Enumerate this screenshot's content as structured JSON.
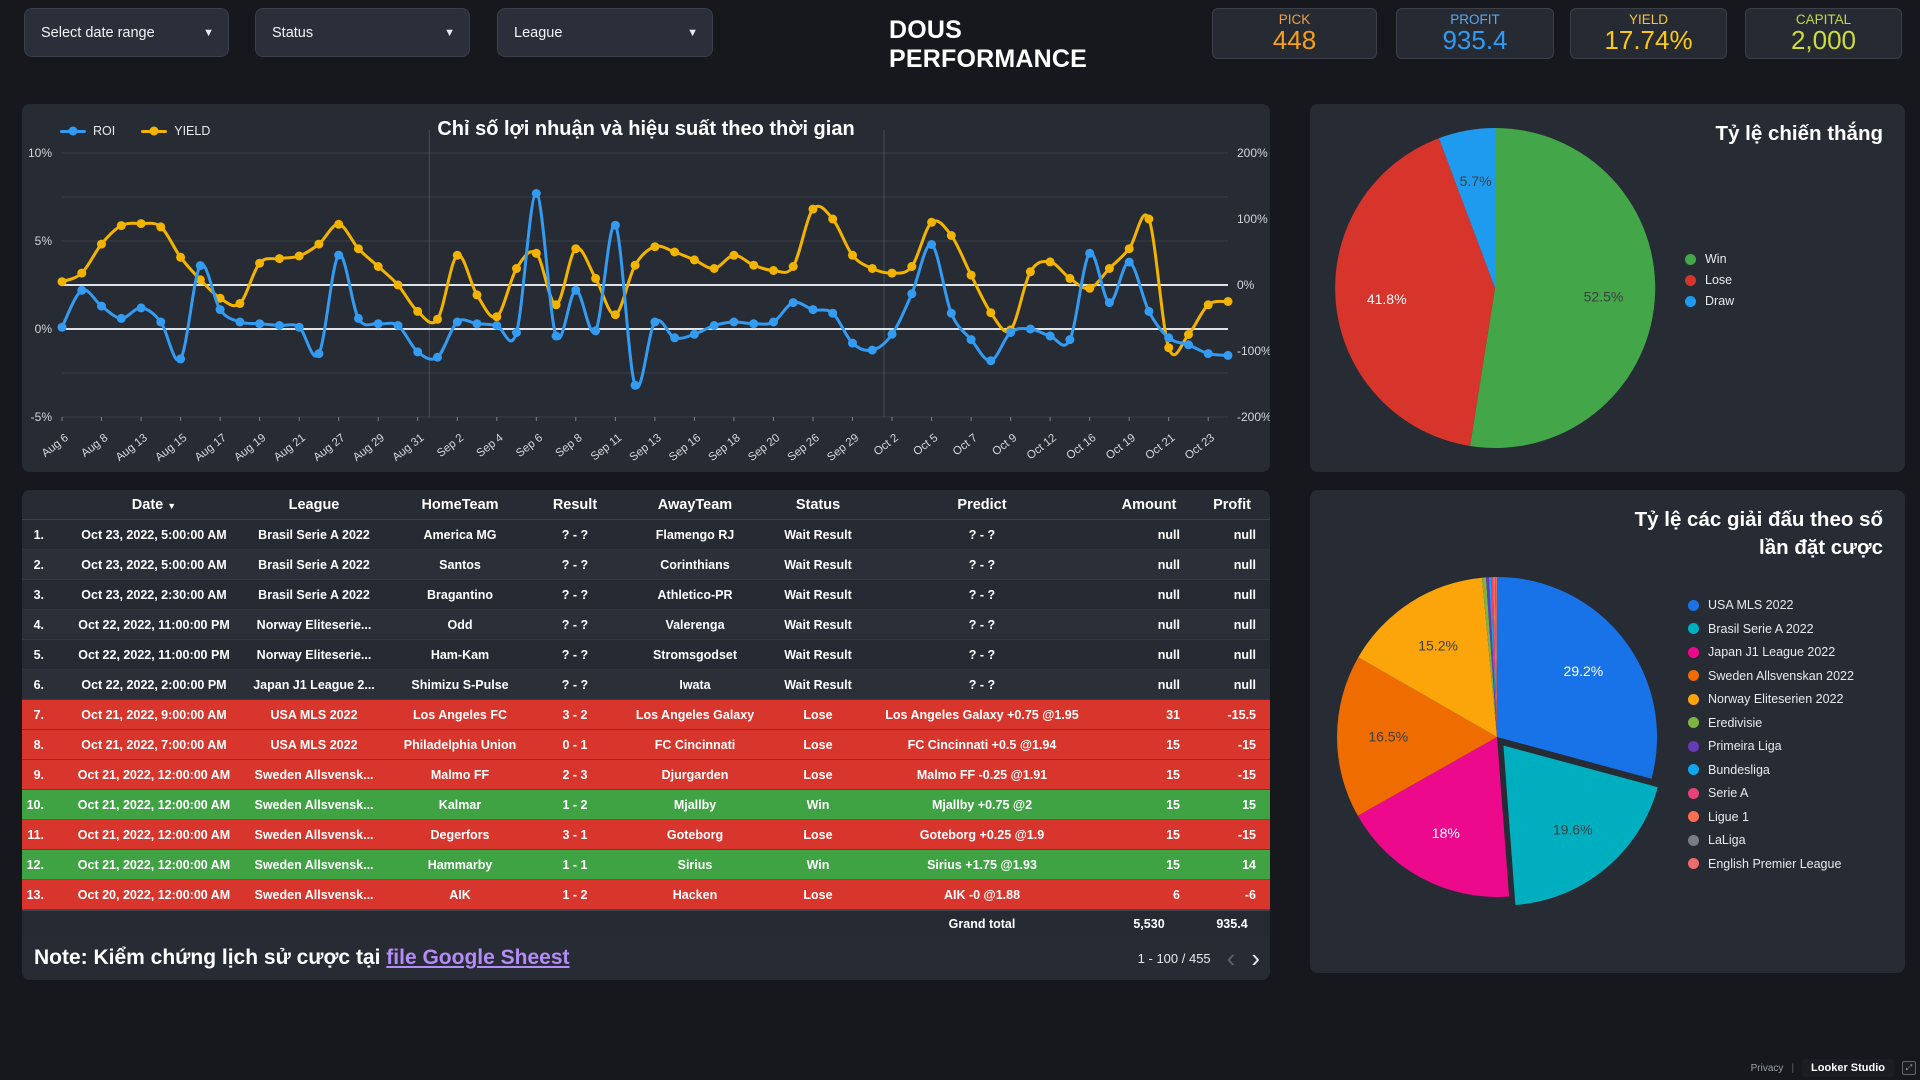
{
  "header": {
    "filters": [
      {
        "label": "Select date range"
      },
      {
        "label": "Status"
      },
      {
        "label": "League"
      }
    ],
    "title": "DOUS PERFORMANCE",
    "kpis": [
      {
        "label": "PICK",
        "value": "448",
        "label_color": "#ED9F44",
        "value_color": "#F99E1B"
      },
      {
        "label": "PROFIT",
        "value": "935.4",
        "label_color": "#5BA7EF",
        "value_color": "#2F9BF4"
      },
      {
        "label": "YIELD",
        "value": "17.74%",
        "label_color": "#F2C53D",
        "value_color": "#FBC711"
      },
      {
        "label": "CAPITAL",
        "value": "2,000",
        "label_color": "#C5D449",
        "value_color": "#CDDC39"
      }
    ]
  },
  "line_chart": {
    "title": "Chỉ số lợi nhuận và hiệu suất theo thời gian",
    "left_axis_ticks": [
      "10%",
      "5%",
      "0%",
      "-5%"
    ],
    "right_axis_ticks": [
      "200%",
      "100%",
      "0%",
      "-100%",
      "-200%"
    ]
  },
  "chart_data": [
    {
      "type": "line",
      "title": "Chỉ số lợi nhuận và hiệu suất theo thời gian",
      "x_labels": [
        "Aug 6",
        "Aug 8",
        "Aug 13",
        "Aug 15",
        "Aug 17",
        "Aug 19",
        "Aug 21",
        "Aug 27",
        "Aug 29",
        "Aug 31",
        "Sep 2",
        "Sep 4",
        "Sep 6",
        "Sep 8",
        "Sep 11",
        "Sep 13",
        "Sep 16",
        "Sep 18",
        "Sep 20",
        "Sep 26",
        "Sep 29",
        "Oct 2",
        "Oct 5",
        "Oct 7",
        "Oct 9",
        "Oct 12",
        "Oct 16",
        "Oct 19",
        "Oct 21",
        "Oct 23"
      ],
      "left_axis_range": [
        -5,
        10
      ],
      "right_axis_range": [
        -200,
        200
      ],
      "series": [
        {
          "name": "YIELD",
          "axis": "right",
          "color": "#F2B400",
          "values": [
            5,
            18,
            62,
            90,
            93,
            88,
            42,
            8,
            -20,
            -28,
            33,
            40,
            44,
            62,
            92,
            55,
            28,
            0,
            -40,
            -52,
            45,
            -15,
            -48,
            25,
            48,
            -30,
            55,
            10,
            -45,
            30,
            58,
            50,
            38,
            25,
            45,
            30,
            22,
            28,
            115,
            100,
            45,
            25,
            18,
            28,
            95,
            75,
            15,
            -42,
            -68,
            20,
            35,
            10,
            -5,
            25,
            55,
            100,
            -95,
            -75,
            -30,
            -25
          ]
        },
        {
          "name": "ROI",
          "axis": "left",
          "color": "#339CF2",
          "values": [
            0.1,
            2.2,
            1.3,
            0.6,
            1.2,
            0.4,
            -1.7,
            3.6,
            1.1,
            0.4,
            0.3,
            0.2,
            0.1,
            -1.4,
            4.2,
            0.6,
            0.3,
            0.2,
            -1.3,
            -1.6,
            0.4,
            0.3,
            0.2,
            -0.2,
            7.7,
            -0.4,
            2.2,
            -0.1,
            5.9,
            -3.2,
            0.4,
            -0.5,
            -0.3,
            0.2,
            0.4,
            0.3,
            0.4,
            1.5,
            1.1,
            0.9,
            -0.8,
            -1.2,
            -0.3,
            2.0,
            4.8,
            0.9,
            -0.6,
            -1.8,
            -0.2,
            0.0,
            -0.4,
            -0.6,
            4.3,
            1.5,
            3.8,
            1.0,
            -0.5,
            -0.9,
            -1.4,
            -1.5
          ]
        }
      ]
    },
    {
      "type": "pie",
      "title": "Tỷ lệ chiến thắng",
      "slices": [
        {
          "label": "Win",
          "value": 52.5,
          "color": "#43A648",
          "pct_label": "52.5%",
          "pct_color": "#3c4043"
        },
        {
          "label": "Lose",
          "value": 41.8,
          "color": "#D7342B",
          "pct_label": "41.8%",
          "pct_color": "#ffffff"
        },
        {
          "label": "Draw",
          "value": 5.7,
          "color": "#1E9BEF",
          "pct_label": "5.7%",
          "pct_color": "#3c4043"
        }
      ]
    },
    {
      "type": "pie",
      "title": "Tỷ lệ các giải đấu theo số lần đặt cược",
      "title_lines": [
        "Tỷ lệ các giải đấu theo số",
        "lần đặt cược"
      ],
      "slices": [
        {
          "label": "USA MLS 2022",
          "value": 29.2,
          "color": "#1973E8",
          "pct_label": "29.2%",
          "pct_color": "#ffffff"
        },
        {
          "label": "Brasil Serie A 2022",
          "value": 19.6,
          "color": "#00AFBF",
          "pct_label": "19.6%",
          "pct_color": "#3c4043",
          "explode": true
        },
        {
          "label": "Japan J1 League 2022",
          "value": 18,
          "color": "#EC098C",
          "pct_label": "18%",
          "pct_color": "#ffffff"
        },
        {
          "label": "Sweden Allsvenskan 2022",
          "value": 16.5,
          "color": "#EF6C00",
          "pct_label": "16.5%",
          "pct_color": "#3c4043"
        },
        {
          "label": "Norway Eliteserien 2022",
          "value": 15.2,
          "color": "#FBA50A",
          "pct_label": "15.2%",
          "pct_color": "#3c4043"
        },
        {
          "label": "Eredivisie",
          "value": 0.4,
          "color": "#7CB342"
        },
        {
          "label": "Primeira Liga",
          "value": 0.3,
          "color": "#673AB7"
        },
        {
          "label": "Bundesliga",
          "value": 0.2,
          "color": "#0FA8F0"
        },
        {
          "label": "Serie A",
          "value": 0.2,
          "color": "#E84178"
        },
        {
          "label": "Ligue 1",
          "value": 0.2,
          "color": "#FB6E51"
        },
        {
          "label": "LaLiga",
          "value": 0.1,
          "color": "#797D82"
        },
        {
          "label": "English Premier League",
          "value": 0.1,
          "color": "#ED6B68"
        }
      ]
    }
  ],
  "table": {
    "headers": [
      "Date",
      "League",
      "HomeTeam",
      "Result",
      "AwayTeam",
      "Status",
      "Predict",
      "Amount",
      "Profit"
    ],
    "sort_column": "Date",
    "rows": [
      {
        "idx": "1.",
        "date": "Oct 23, 2022, 5:00:00 AM",
        "league": "Brasil Serie A 2022",
        "home": "America MG",
        "result": "? - ?",
        "away": "Flamengo RJ",
        "status": "Wait Result",
        "predict": "? - ?",
        "amount": "null",
        "profit": "null",
        "highlight": "none"
      },
      {
        "idx": "2.",
        "date": "Oct 23, 2022, 5:00:00 AM",
        "league": "Brasil Serie A 2022",
        "home": "Santos",
        "result": "? - ?",
        "away": "Corinthians",
        "status": "Wait Result",
        "predict": "? - ?",
        "amount": "null",
        "profit": "null",
        "highlight": "none"
      },
      {
        "idx": "3.",
        "date": "Oct 23, 2022, 2:30:00 AM",
        "league": "Brasil Serie A 2022",
        "home": "Bragantino",
        "result": "? - ?",
        "away": "Athletico-PR",
        "status": "Wait Result",
        "predict": "? - ?",
        "amount": "null",
        "profit": "null",
        "highlight": "none"
      },
      {
        "idx": "4.",
        "date": "Oct 22, 2022, 11:00:00 PM",
        "league": "Norway Eliteserie...",
        "home": "Odd",
        "result": "? - ?",
        "away": "Valerenga",
        "status": "Wait Result",
        "predict": "? - ?",
        "amount": "null",
        "profit": "null",
        "highlight": "none"
      },
      {
        "idx": "5.",
        "date": "Oct 22, 2022, 11:00:00 PM",
        "league": "Norway Eliteserie...",
        "home": "Ham-Kam",
        "result": "? - ?",
        "away": "Stromsgodset",
        "status": "Wait Result",
        "predict": "? - ?",
        "amount": "null",
        "profit": "null",
        "highlight": "none"
      },
      {
        "idx": "6.",
        "date": "Oct 22, 2022, 2:00:00 PM",
        "league": "Japan J1 League 2...",
        "home": "Shimizu S-Pulse",
        "result": "? - ?",
        "away": "Iwata",
        "status": "Wait Result",
        "predict": "? - ?",
        "amount": "null",
        "profit": "null",
        "highlight": "none"
      },
      {
        "idx": "7.",
        "date": "Oct 21, 2022, 9:00:00 AM",
        "league": "USA MLS 2022",
        "home": "Los Angeles FC",
        "result": "3 - 2",
        "away": "Los Angeles Galaxy",
        "status": "Lose",
        "predict": "Los Angeles Galaxy +0.75 @1.95",
        "amount": "31",
        "profit": "-15.5",
        "highlight": "red"
      },
      {
        "idx": "8.",
        "date": "Oct 21, 2022, 7:00:00 AM",
        "league": "USA MLS 2022",
        "home": "Philadelphia Union",
        "result": "0 - 1",
        "away": "FC Cincinnati",
        "status": "Lose",
        "predict": "FC Cincinnati +0.5 @1.94",
        "amount": "15",
        "profit": "-15",
        "highlight": "red"
      },
      {
        "idx": "9.",
        "date": "Oct 21, 2022, 12:00:00 AM",
        "league": "Sweden Allsvensk...",
        "home": "Malmo FF",
        "result": "2 - 3",
        "away": "Djurgarden",
        "status": "Lose",
        "predict": "Malmo FF -0.25 @1.91",
        "amount": "15",
        "profit": "-15",
        "highlight": "red"
      },
      {
        "idx": "10.",
        "date": "Oct 21, 2022, 12:00:00 AM",
        "league": "Sweden Allsvensk...",
        "home": "Kalmar",
        "result": "1 - 2",
        "away": "Mjallby",
        "status": "Win",
        "predict": "Mjallby +0.75 @2",
        "amount": "15",
        "profit": "15",
        "highlight": "green"
      },
      {
        "idx": "11.",
        "date": "Oct 21, 2022, 12:00:00 AM",
        "league": "Sweden Allsvensk...",
        "home": "Degerfors",
        "result": "3 - 1",
        "away": "Goteborg",
        "status": "Lose",
        "predict": "Goteborg +0.25 @1.9",
        "amount": "15",
        "profit": "-15",
        "highlight": "red"
      },
      {
        "idx": "12.",
        "date": "Oct 21, 2022, 12:00:00 AM",
        "league": "Sweden Allsvensk...",
        "home": "Hammarby",
        "result": "1 - 1",
        "away": "Sirius",
        "status": "Win",
        "predict": "Sirius +1.75 @1.93",
        "amount": "15",
        "profit": "14",
        "highlight": "green"
      },
      {
        "idx": "13.",
        "date": "Oct 20, 2022, 12:00:00 AM",
        "league": "Sweden Allsvensk...",
        "home": "AIK",
        "result": "1 - 2",
        "away": "Hacken",
        "status": "Lose",
        "predict": "AIK -0 @1.88",
        "amount": "6",
        "profit": "-6",
        "highlight": "red"
      }
    ],
    "grand_total": {
      "label": "Grand total",
      "amount": "5,530",
      "profit": "935.4"
    },
    "pagination": {
      "range": "1 - 100 / 455"
    }
  },
  "note": {
    "prefix": "Note: Kiểm chứng lịch sử cược tại ",
    "link_text": "file Google Sheest"
  },
  "page_footer": {
    "privacy": "Privacy",
    "brand": "Looker Studio"
  }
}
